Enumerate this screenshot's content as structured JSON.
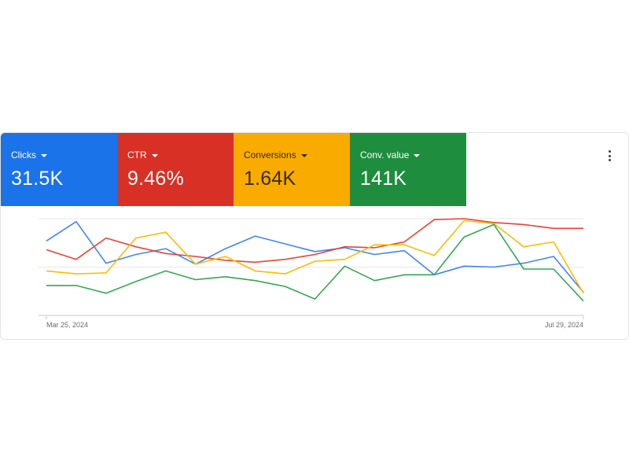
{
  "metric_tiles": [
    {
      "label": "Clicks",
      "value": "31.5K",
      "color": "#1a73e8",
      "text_color": "#ffffff"
    },
    {
      "label": "CTR",
      "value": "9.46%",
      "color": "#d93025",
      "text_color": "#ffffff"
    },
    {
      "label": "Conversions",
      "value": "1.64K",
      "color": "#f9ab00",
      "text_color": "#3c2a00"
    },
    {
      "label": "Conv. value",
      "value": "141K",
      "color": "#1e8e3e",
      "text_color": "#ffffff"
    }
  ],
  "more_menu_icon": "more-vert-icon",
  "chart_data": {
    "type": "line",
    "x_start_label": "Mar 25, 2024",
    "x_end_label": "Jul 29, 2024",
    "x": [
      "2024-03-25",
      "2024-04-01",
      "2024-04-08",
      "2024-04-15",
      "2024-04-22",
      "2024-04-29",
      "2024-05-06",
      "2024-05-13",
      "2024-05-20",
      "2024-05-27",
      "2024-06-03",
      "2024-06-10",
      "2024-06-17",
      "2024-06-24",
      "2024-07-01",
      "2024-07-08",
      "2024-07-15",
      "2024-07-22",
      "2024-07-29"
    ],
    "ylim": [
      0,
      100
    ],
    "grid": true,
    "series": [
      {
        "color": "#4285f4",
        "values": [
          77,
          97,
          54,
          63,
          69,
          53,
          69,
          82,
          74,
          66,
          70,
          63,
          67,
          42,
          51,
          50,
          54,
          61,
          24
        ]
      },
      {
        "color": "#ea4335",
        "values": [
          68,
          58,
          80,
          71,
          64,
          61,
          57,
          55,
          58,
          63,
          71,
          70,
          76,
          99,
          100,
          96,
          94,
          90,
          90
        ]
      },
      {
        "color": "#fbbc04",
        "values": [
          46,
          43,
          44,
          80,
          86,
          53,
          61,
          46,
          43,
          56,
          58,
          73,
          73,
          62,
          98,
          95,
          71,
          76,
          23
        ]
      },
      {
        "color": "#34a853",
        "values": [
          31,
          31,
          23,
          35,
          46,
          37,
          40,
          36,
          30,
          17,
          51,
          36,
          42,
          42,
          81,
          94,
          48,
          48,
          15
        ]
      }
    ]
  }
}
